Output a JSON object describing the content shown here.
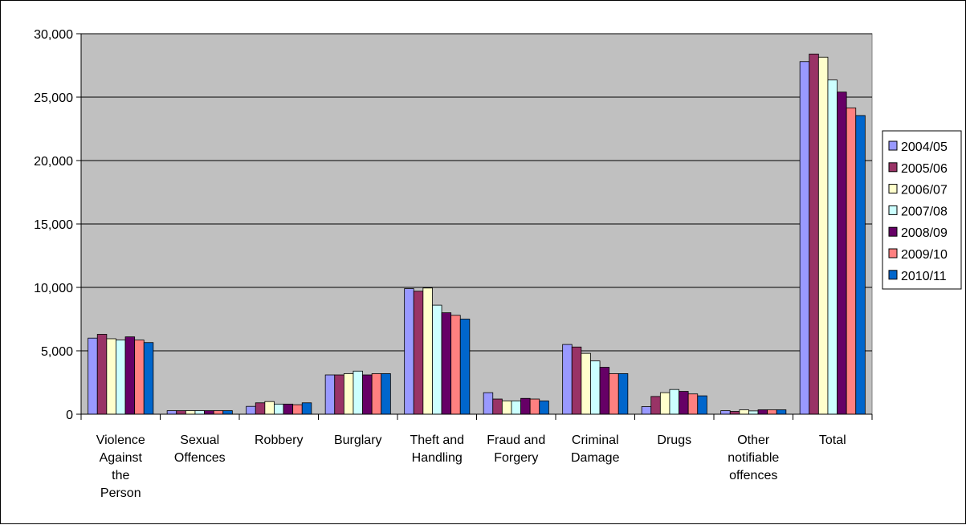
{
  "chart_data": {
    "type": "bar",
    "title": "",
    "xlabel": "",
    "ylabel": "",
    "ylim": [
      0,
      30000
    ],
    "yticks": [
      "0",
      "5,000",
      "10,000",
      "15,000",
      "20,000",
      "25,000",
      "30,000"
    ],
    "ytick_values": [
      0,
      5000,
      10000,
      15000,
      20000,
      25000,
      30000
    ],
    "grid": true,
    "legend_position": "right",
    "plot_background": "#c0c0c0",
    "categories": [
      [
        "Violence",
        "Against",
        "the",
        "Person"
      ],
      [
        "Sexual",
        "Offences"
      ],
      [
        "Robbery"
      ],
      [
        "Burglary"
      ],
      [
        "Theft and",
        "Handling"
      ],
      [
        "Fraud and",
        "Forgery"
      ],
      [
        "Criminal",
        "Damage"
      ],
      [
        "Drugs"
      ],
      [
        "Other",
        "notifiable",
        "offences"
      ],
      [
        "Total"
      ]
    ],
    "series": [
      {
        "name": "2004/05",
        "color": "#9999ff",
        "values": [
          6000,
          280,
          620,
          3100,
          9900,
          1700,
          5500,
          600,
          280,
          27800
        ]
      },
      {
        "name": "2005/06",
        "color": "#993366",
        "values": [
          6300,
          280,
          900,
          3100,
          9700,
          1200,
          5300,
          1400,
          220,
          28400
        ]
      },
      {
        "name": "2006/07",
        "color": "#ffffcc",
        "values": [
          5950,
          280,
          1000,
          3200,
          9950,
          1050,
          4800,
          1700,
          350,
          28150
        ]
      },
      {
        "name": "2007/08",
        "color": "#ccffff",
        "values": [
          5850,
          280,
          800,
          3400,
          8600,
          1050,
          4200,
          1950,
          260,
          26350
        ]
      },
      {
        "name": "2008/09",
        "color": "#660066",
        "values": [
          6100,
          280,
          800,
          3100,
          8000,
          1250,
          3700,
          1800,
          350,
          25400
        ]
      },
      {
        "name": "2009/10",
        "color": "#ff8080",
        "values": [
          5850,
          280,
          750,
          3200,
          7800,
          1200,
          3200,
          1600,
          350,
          24150
        ]
      },
      {
        "name": "2010/11",
        "color": "#0066cc",
        "values": [
          5650,
          280,
          900,
          3200,
          7500,
          1050,
          3200,
          1450,
          350,
          23550
        ]
      }
    ]
  }
}
